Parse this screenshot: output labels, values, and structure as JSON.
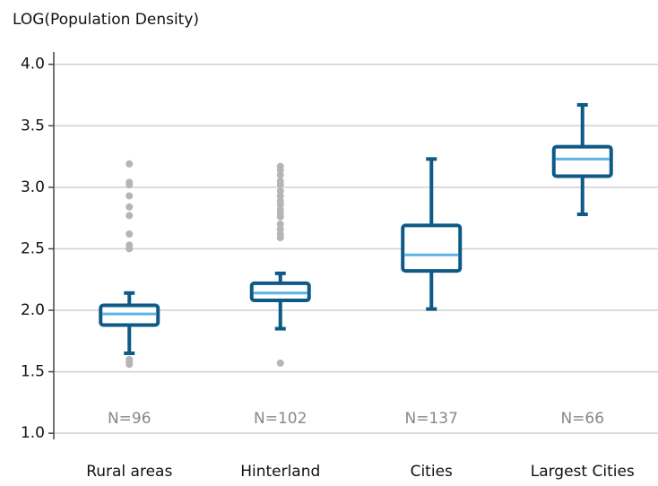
{
  "chart_data": {
    "type": "box",
    "y_label": "LOG(Population Density)",
    "categories": [
      "Rural areas",
      "Hinterland",
      "Cities",
      "Largest Cities"
    ],
    "annotations": [
      "N=96",
      "N=102",
      "N=137",
      "N=66"
    ],
    "box_color": "#0d5a87",
    "median_color": "#5bb3e4",
    "outlier_color": "#b5b5b5",
    "ylim": [
      0.95,
      4.1
    ],
    "yticks": [
      {
        "value": 1,
        "label": "1.0"
      },
      {
        "value": 1.5,
        "label": "1.5"
      },
      {
        "value": 2,
        "label": "2.0"
      },
      {
        "value": 2.5,
        "label": "2.5"
      },
      {
        "value": 3,
        "label": "3.0"
      },
      {
        "value": 3.5,
        "label": "3.5"
      },
      {
        "value": 4,
        "label": "4.0"
      }
    ],
    "grid": true,
    "boxes": [
      {
        "whisker_low": 1.65,
        "q1": 1.88,
        "median": 1.97,
        "q3": 2.04,
        "whisker_high": 2.14,
        "outliers": [
          1.56,
          1.58,
          1.6,
          2.5,
          2.53,
          2.62,
          2.77,
          2.84,
          2.93,
          3.02,
          3.04,
          3.19
        ]
      },
      {
        "whisker_low": 1.85,
        "q1": 2.08,
        "median": 2.14,
        "q3": 2.22,
        "whisker_high": 2.3,
        "outliers": [
          1.57,
          2.59,
          2.62,
          2.66,
          2.7,
          2.76,
          2.79,
          2.82,
          2.86,
          2.89,
          2.93,
          2.97,
          3.02,
          3.05,
          3.1,
          3.14,
          3.17
        ]
      },
      {
        "whisker_low": 2.01,
        "q1": 2.32,
        "median": 2.45,
        "q3": 2.69,
        "whisker_high": 3.23,
        "outliers": []
      },
      {
        "whisker_low": 2.78,
        "q1": 3.09,
        "median": 3.23,
        "q3": 3.33,
        "whisker_high": 3.67,
        "outliers": []
      }
    ]
  }
}
